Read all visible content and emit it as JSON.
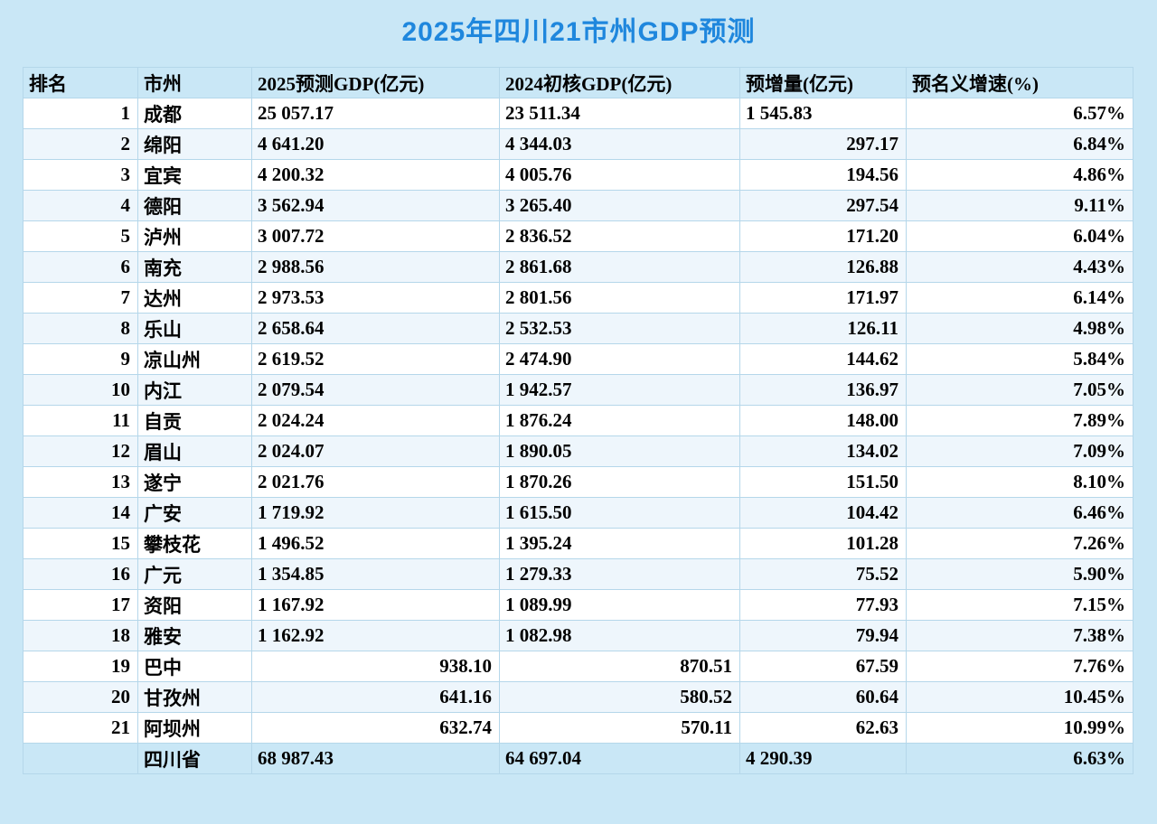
{
  "chart_data": {
    "type": "table",
    "title": "2025年四川21市州GDP预测",
    "columns": [
      "排名",
      "市州",
      "2025预测GDP(亿元)",
      "2024初核GDP(亿元)",
      "预增量(亿元)",
      "预名义增速(%)"
    ],
    "rows": [
      [
        "1",
        "成都",
        "25 057.17",
        "23 511.34",
        "1 545.83",
        "6.57%"
      ],
      [
        "2",
        "绵阳",
        "4 641.20",
        "4 344.03",
        "297.17",
        "6.84%"
      ],
      [
        "3",
        "宜宾",
        "4 200.32",
        "4 005.76",
        "194.56",
        "4.86%"
      ],
      [
        "4",
        "德阳",
        "3 562.94",
        "3 265.40",
        "297.54",
        "9.11%"
      ],
      [
        "5",
        "泸州",
        "3 007.72",
        "2 836.52",
        "171.20",
        "6.04%"
      ],
      [
        "6",
        "南充",
        "2 988.56",
        "2 861.68",
        "126.88",
        "4.43%"
      ],
      [
        "7",
        "达州",
        "2 973.53",
        "2 801.56",
        "171.97",
        "6.14%"
      ],
      [
        "8",
        "乐山",
        "2 658.64",
        "2 532.53",
        "126.11",
        "4.98%"
      ],
      [
        "9",
        "凉山州",
        "2 619.52",
        "2 474.90",
        "144.62",
        "5.84%"
      ],
      [
        "10",
        "内江",
        "2 079.54",
        "1 942.57",
        "136.97",
        "7.05%"
      ],
      [
        "11",
        "自贡",
        "2 024.24",
        "1 876.24",
        "148.00",
        "7.89%"
      ],
      [
        "12",
        "眉山",
        "2 024.07",
        "1 890.05",
        "134.02",
        "7.09%"
      ],
      [
        "13",
        "遂宁",
        "2 021.76",
        "1 870.26",
        "151.50",
        "8.10%"
      ],
      [
        "14",
        "广安",
        "1 719.92",
        "1 615.50",
        "104.42",
        "6.46%"
      ],
      [
        "15",
        "攀枝花",
        "1 496.52",
        "1 395.24",
        "101.28",
        "7.26%"
      ],
      [
        "16",
        "广元",
        "1 354.85",
        "1 279.33",
        "75.52",
        "5.90%"
      ],
      [
        "17",
        "资阳",
        "1 167.92",
        "1 089.99",
        "77.93",
        "7.15%"
      ],
      [
        "18",
        "雅安",
        "1 162.92",
        "1 082.98",
        "79.94",
        "7.38%"
      ],
      [
        "19",
        "巴中",
        "938.10",
        "870.51",
        "67.59",
        "7.76%"
      ],
      [
        "20",
        "甘孜州",
        "641.16",
        "580.52",
        "60.64",
        "10.45%"
      ],
      [
        "21",
        "阿坝州",
        "632.74",
        "570.11",
        "62.63",
        "10.99%"
      ],
      [
        "",
        "四川省",
        "68 987.43",
        "64 697.04",
        "4 290.39",
        "6.63%"
      ]
    ]
  }
}
